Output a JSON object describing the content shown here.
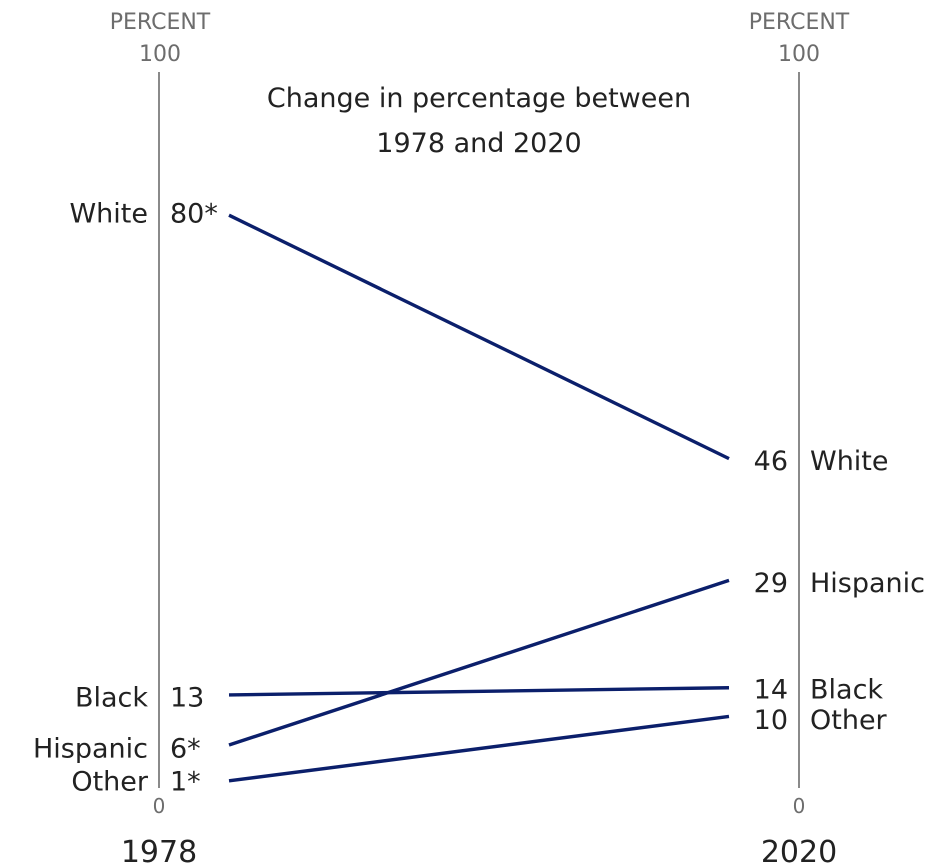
{
  "chart_data": {
    "type": "slope",
    "title": [
      "Change in percentage between",
      "1978 and 2020"
    ],
    "axes": [
      {
        "year": "1978",
        "unit_label": "PERCENT",
        "top_tick": "100",
        "bottom_tick": "0"
      },
      {
        "year": "2020",
        "unit_label": "PERCENT",
        "top_tick": "100",
        "bottom_tick": "0"
      }
    ],
    "ylim": [
      0,
      100
    ],
    "series": [
      {
        "name": "White",
        "start": 80,
        "end": 46,
        "start_label": "80*",
        "end_label": "46"
      },
      {
        "name": "Hispanic",
        "start": 6,
        "end": 29,
        "start_label": "6*",
        "end_label": "29"
      },
      {
        "name": "Black",
        "start": 13,
        "end": 14,
        "start_label": "13",
        "end_label": "14"
      },
      {
        "name": "Other",
        "start": 1,
        "end": 10,
        "start_label": "1*",
        "end_label": "10"
      }
    ],
    "line_color": "#0b1f6b",
    "axis_color": "#8a8a8a"
  }
}
